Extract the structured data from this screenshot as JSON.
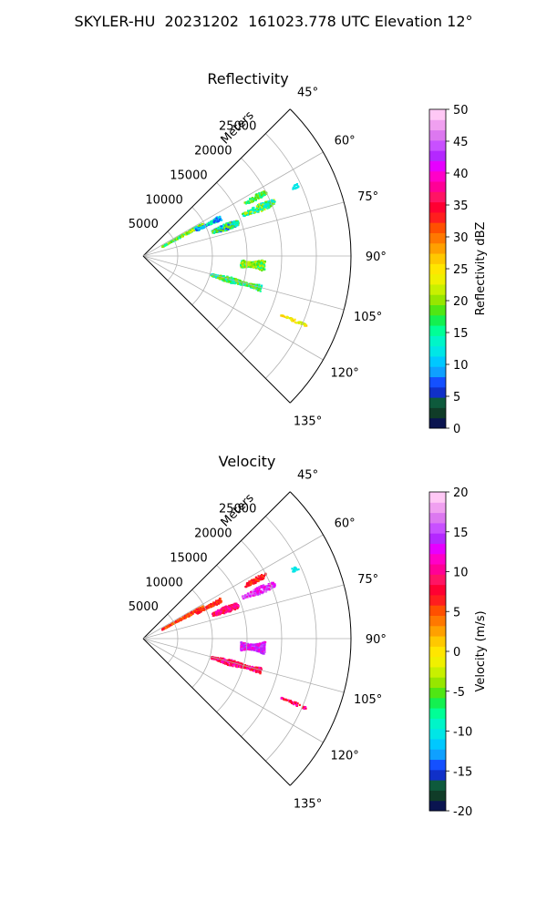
{
  "figure_title": "SKYLER-HU  20231202  161023.778 UTC Elevation 12°",
  "chart_data": [
    {
      "type": "polar-sector",
      "title": "Reflectivity",
      "theta_ticks": [
        "45°",
        "60°",
        "75°",
        "90°",
        "105°",
        "120°",
        "135°"
      ],
      "theta_values": [
        45,
        60,
        75,
        90,
        105,
        120,
        135
      ],
      "theta_range": [
        45,
        135
      ],
      "r_label": "Meters",
      "r_ticks": [
        5000,
        10000,
        15000,
        20000,
        25000
      ],
      "r_max": 30000,
      "grid": true,
      "colorbar": {
        "label": "Reflectivity dBZ",
        "range": [
          0,
          50
        ],
        "ticks": [
          0,
          5,
          10,
          15,
          20,
          25,
          30,
          35,
          40,
          45,
          50
        ],
        "colors": [
          "#0a1450",
          "#103c28",
          "#0e5a3c",
          "#1030c8",
          "#1450ff",
          "#0fa0ff",
          "#00c8ff",
          "#00e6e6",
          "#00f5c8",
          "#00ff96",
          "#14f050",
          "#50e614",
          "#96e600",
          "#c8f000",
          "#f0f000",
          "#ffe600",
          "#ffc800",
          "#ffa000",
          "#ff7800",
          "#ff5000",
          "#ff1e1e",
          "#ff0032",
          "#ff1464",
          "#ff0096",
          "#ff00c8",
          "#e600ff",
          "#b428ff",
          "#c850ff",
          "#dc78f0",
          "#f0a0f0",
          "#ffc8f5"
        ]
      },
      "echoes": [
        {
          "az": 61,
          "r0": 3000,
          "r1": 9800,
          "w": 2.2,
          "colors": [
            "#00ffa0",
            "#50e614",
            "#96e600",
            "#00e6e6",
            "#f0f000"
          ]
        },
        {
          "az": 63,
          "r0": 8500,
          "r1": 12500,
          "w": 2.4,
          "colors": [
            "#1450ff",
            "#00c8ff",
            "#00ffa0"
          ]
        },
        {
          "az": 70,
          "r0": 10500,
          "r1": 14500,
          "w": 3.0,
          "colors": [
            "#00e6e6",
            "#50e614",
            "#96e600",
            "#00ffa0",
            "#1450ff"
          ]
        },
        {
          "az": 67,
          "r0": 15500,
          "r1": 20500,
          "w": 2.4,
          "colors": [
            "#00ffa0",
            "#50e614",
            "#c8f000",
            "#00e6e6"
          ]
        },
        {
          "az": 62,
          "r0": 16500,
          "r1": 20000,
          "w": 1.6,
          "colors": [
            "#50e614",
            "#96e600",
            "#00ffa0"
          ]
        },
        {
          "az": 65,
          "r0": 23500,
          "r1": 24500,
          "w": 0.9,
          "colors": [
            "#00e6e6"
          ]
        },
        {
          "az": 94,
          "r0": 14000,
          "r1": 17500,
          "w": 4.8,
          "colors": [
            "#50e614",
            "#96e600",
            "#00ffa0",
            "#c8f000"
          ]
        },
        {
          "az": 105,
          "r0": 10000,
          "r1": 17500,
          "w": 2.6,
          "colors": [
            "#00e6e6",
            "#50e614",
            "#96e600",
            "#00ffa0"
          ]
        },
        {
          "az": 113,
          "r0": 21500,
          "r1": 25500,
          "w": 0.7,
          "colors": [
            "#f0f000",
            "#ffe600",
            "#ffc800",
            "#c8f000"
          ]
        }
      ]
    },
    {
      "type": "polar-sector",
      "title": "Velocity",
      "theta_ticks": [
        "45°",
        "60°",
        "75°",
        "90°",
        "105°",
        "120°",
        "135°"
      ],
      "theta_values": [
        45,
        60,
        75,
        90,
        105,
        120,
        135
      ],
      "theta_range": [
        45,
        135
      ],
      "r_label": "Meters",
      "r_ticks": [
        5000,
        10000,
        15000,
        20000,
        25000
      ],
      "r_max": 30000,
      "grid": true,
      "colorbar": {
        "label": "Velocity (m/s)",
        "range": [
          -20,
          20
        ],
        "ticks": [
          -20,
          -15,
          -10,
          -5,
          0,
          5,
          10,
          15,
          20
        ],
        "colors": [
          "#0a1450",
          "#103c28",
          "#0e5a3c",
          "#1030c8",
          "#1450ff",
          "#0fa0ff",
          "#00c8ff",
          "#00e6e6",
          "#00f5c8",
          "#00ff96",
          "#14f050",
          "#50e614",
          "#96e600",
          "#c8f000",
          "#f0f000",
          "#ffe600",
          "#ffc800",
          "#ffa000",
          "#ff7800",
          "#ff5000",
          "#ff1e1e",
          "#ff0032",
          "#ff1464",
          "#ff0096",
          "#ff00c8",
          "#e600ff",
          "#b428ff",
          "#c850ff",
          "#dc78f0",
          "#f0a0f0",
          "#ffc8f5"
        ]
      },
      "echoes": [
        {
          "az": 61,
          "r0": 3000,
          "r1": 9800,
          "w": 2.2,
          "colors": [
            "#ff1e1e",
            "#ff5000",
            "#ff0032",
            "#ff7800"
          ]
        },
        {
          "az": 63,
          "r0": 8500,
          "r1": 12500,
          "w": 2.4,
          "colors": [
            "#ff1e1e",
            "#ff0032",
            "#ff5000"
          ]
        },
        {
          "az": 70,
          "r0": 10500,
          "r1": 14500,
          "w": 3.0,
          "colors": [
            "#ff0096",
            "#ff00c8",
            "#ff1e1e",
            "#ff1464"
          ]
        },
        {
          "az": 67,
          "r0": 15500,
          "r1": 20500,
          "w": 2.4,
          "colors": [
            "#c850ff",
            "#e600ff",
            "#dc78f0",
            "#ff00c8"
          ]
        },
        {
          "az": 62,
          "r0": 16500,
          "r1": 20000,
          "w": 1.6,
          "colors": [
            "#ff1e1e",
            "#ff0032",
            "#ff5000"
          ]
        },
        {
          "az": 65,
          "r0": 23500,
          "r1": 24500,
          "w": 0.9,
          "colors": [
            "#00e6e6"
          ]
        },
        {
          "az": 94,
          "r0": 14000,
          "r1": 17500,
          "w": 4.8,
          "colors": [
            "#e600ff",
            "#c850ff",
            "#b428ff",
            "#ff00c8"
          ]
        },
        {
          "az": 105,
          "r0": 10000,
          "r1": 17500,
          "w": 2.6,
          "colors": [
            "#ff1e1e",
            "#ff0032",
            "#ff00c8",
            "#ff1464"
          ]
        },
        {
          "az": 113,
          "r0": 21500,
          "r1": 25500,
          "w": 0.7,
          "colors": [
            "#ff00c8",
            "#ff1e1e",
            "#ff0032"
          ]
        }
      ]
    }
  ]
}
